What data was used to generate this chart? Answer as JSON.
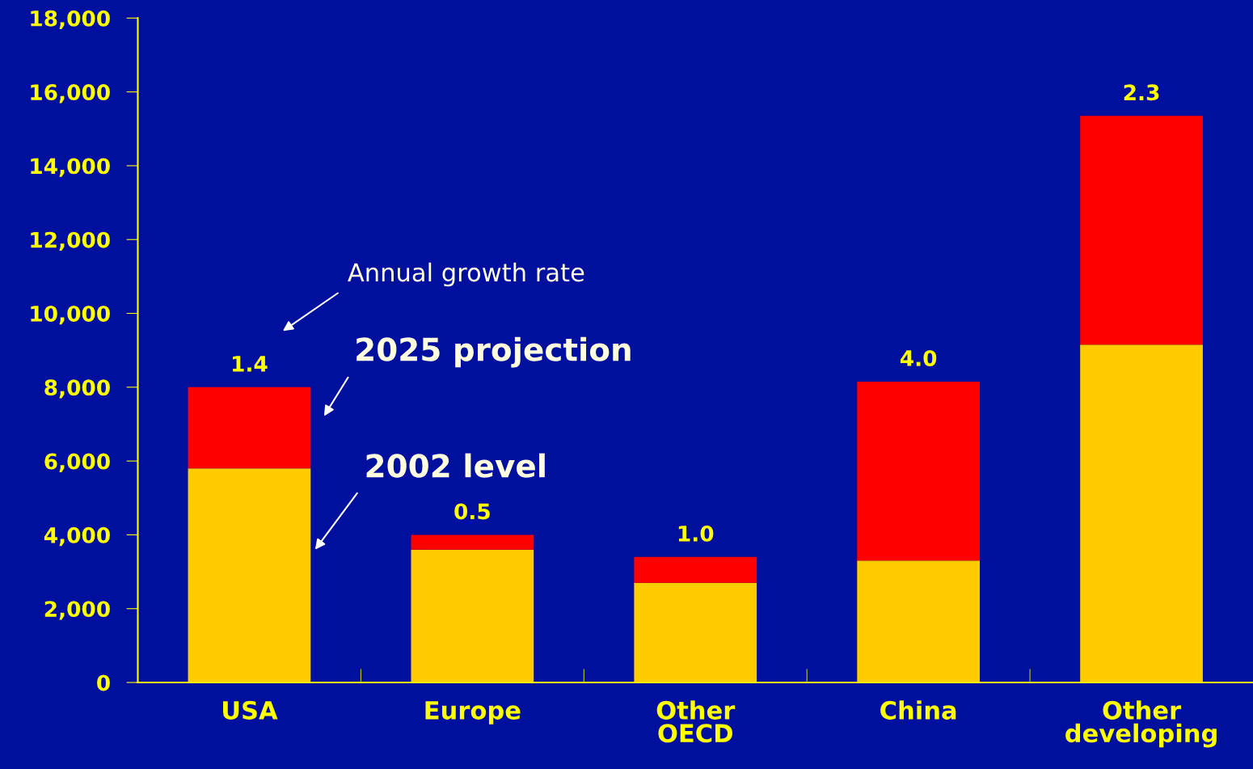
{
  "chart_data": {
    "type": "bar",
    "stacked": true,
    "categories": [
      "USA",
      "Europe",
      "Other OECD",
      "China",
      "Other developing"
    ],
    "series": [
      {
        "color": "#ffcc00",
        "values": [
          5800,
          3600,
          2700,
          3300,
          9150
        ]
      },
      {
        "color": "#ff0000",
        "values": [
          2200,
          400,
          700,
          4850,
          6200
        ]
      }
    ],
    "ylim": [
      0,
      18000
    ],
    "yticks": [
      {
        "value": 0,
        "label": "0"
      },
      {
        "value": 2000,
        "label": "2,000"
      },
      {
        "value": 4000,
        "label": "4,000"
      },
      {
        "value": 6000,
        "label": "6,000"
      },
      {
        "value": 8000,
        "label": "8,000"
      },
      {
        "value": 10000,
        "label": "10,000"
      },
      {
        "value": 12000,
        "label": "12,000"
      },
      {
        "value": 14000,
        "label": "14,000"
      },
      {
        "value": 16000,
        "label": "16,000"
      },
      {
        "value": 18000,
        "label": "18,000"
      }
    ],
    "grid": false,
    "legend": false,
    "annotations": [
      "Annual growth rate",
      "2025 projection",
      "2002 level",
      {
        "text": "1.4",
        "x": "USA",
        "y": 8000
      },
      {
        "text": "0.5",
        "x": "Europe",
        "y": 4000
      },
      {
        "text": "1.0",
        "x": "Other OECD",
        "y": 3400
      },
      {
        "text": "4.0",
        "x": "China",
        "y": 8150
      },
      {
        "text": "2.3",
        "x": "Other developing",
        "y": 15350
      }
    ]
  }
}
